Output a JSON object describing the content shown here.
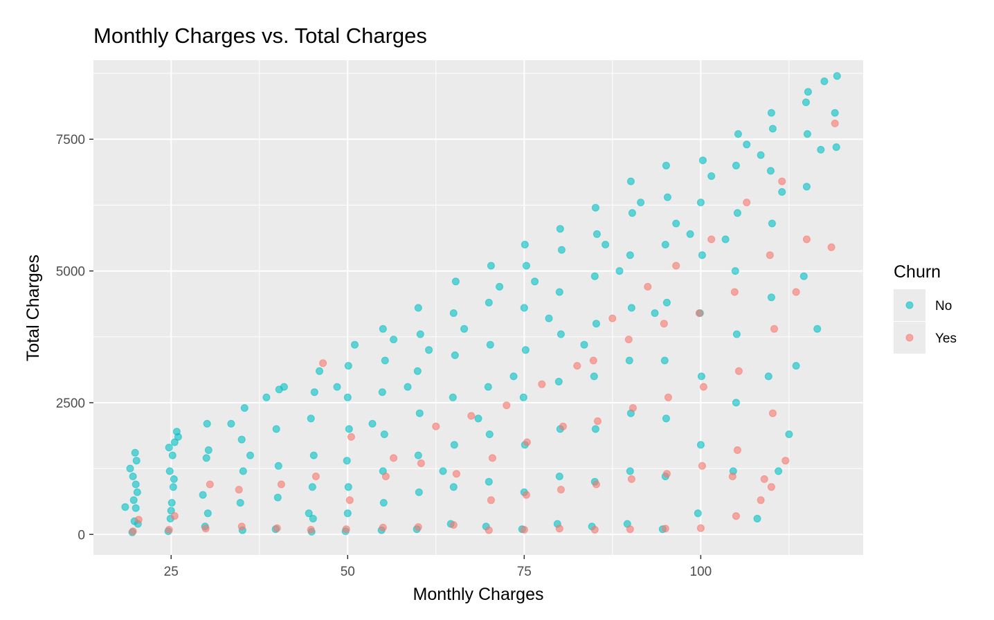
{
  "colors": {
    "panel_bg": "#EBEBEB",
    "grid": "#FFFFFF",
    "tick": "#333333",
    "tick_label": "#4D4D4D"
  },
  "chart_data": {
    "type": "scatter",
    "title": "Monthly Charges vs. Total Charges",
    "xlabel": "Monthly Charges",
    "ylabel": "Total Charges",
    "xlim": [
      14,
      123
    ],
    "ylim": [
      -390,
      9000
    ],
    "x_ticks": [
      25,
      50,
      75,
      100
    ],
    "x_tick_labels": [
      "25",
      "50",
      "75",
      "100"
    ],
    "y_ticks": [
      0,
      2500,
      5000,
      7500
    ],
    "y_tick_labels": [
      "0",
      "2500",
      "5000",
      "7500"
    ],
    "grid": true,
    "legend": {
      "title": "Churn",
      "position": "right"
    },
    "point_alpha": 0.6,
    "series": [
      {
        "name": "No",
        "color": "#00BFC4",
        "points": [
          [
            19.5,
            40
          ],
          [
            19.8,
            250
          ],
          [
            20.0,
            500
          ],
          [
            20.2,
            800
          ],
          [
            19.6,
            1100
          ],
          [
            20.1,
            1400
          ],
          [
            19.9,
            1550
          ],
          [
            20.3,
            200
          ],
          [
            19.7,
            650
          ],
          [
            20.0,
            950
          ],
          [
            18.5,
            520
          ],
          [
            19.2,
            1250
          ],
          [
            24.6,
            60
          ],
          [
            24.9,
            300
          ],
          [
            25.1,
            600
          ],
          [
            25.3,
            900
          ],
          [
            24.8,
            1200
          ],
          [
            25.2,
            1500
          ],
          [
            25.5,
            1750
          ],
          [
            25.8,
            1950
          ],
          [
            24.7,
            1650
          ],
          [
            25.0,
            450
          ],
          [
            25.4,
            1050
          ],
          [
            26.0,
            1850
          ],
          [
            29.8,
            150
          ],
          [
            30.2,
            400
          ],
          [
            30.0,
            1450
          ],
          [
            30.3,
            1600
          ],
          [
            30.1,
            2100
          ],
          [
            29.5,
            750
          ],
          [
            35.1,
            80
          ],
          [
            34.8,
            600
          ],
          [
            35.2,
            1200
          ],
          [
            35.0,
            1800
          ],
          [
            35.4,
            2400
          ],
          [
            33.5,
            2100
          ],
          [
            36.2,
            1500
          ],
          [
            39.8,
            100
          ],
          [
            40.1,
            700
          ],
          [
            40.2,
            1300
          ],
          [
            39.9,
            2000
          ],
          [
            40.3,
            2750
          ],
          [
            38.5,
            2600
          ],
          [
            41.0,
            2800
          ],
          [
            44.9,
            50
          ],
          [
            45.1,
            300
          ],
          [
            45.0,
            900
          ],
          [
            45.2,
            1500
          ],
          [
            44.8,
            2200
          ],
          [
            45.3,
            2700
          ],
          [
            46.0,
            3100
          ],
          [
            44.5,
            400
          ],
          [
            49.7,
            60
          ],
          [
            50.0,
            400
          ],
          [
            50.1,
            900
          ],
          [
            49.9,
            1400
          ],
          [
            50.2,
            2000
          ],
          [
            50.0,
            2600
          ],
          [
            50.1,
            3200
          ],
          [
            51.0,
            3600
          ],
          [
            48.5,
            2800
          ],
          [
            54.8,
            80
          ],
          [
            55.1,
            600
          ],
          [
            55.0,
            1200
          ],
          [
            55.2,
            1900
          ],
          [
            54.9,
            2700
          ],
          [
            55.3,
            3300
          ],
          [
            55.0,
            3900
          ],
          [
            56.5,
            3700
          ],
          [
            53.5,
            2100
          ],
          [
            59.8,
            100
          ],
          [
            60.1,
            800
          ],
          [
            60.0,
            1500
          ],
          [
            60.2,
            2300
          ],
          [
            59.9,
            3100
          ],
          [
            60.3,
            3800
          ],
          [
            60.0,
            4300
          ],
          [
            58.5,
            2800
          ],
          [
            61.5,
            3500
          ],
          [
            64.6,
            200
          ],
          [
            65.0,
            900
          ],
          [
            65.1,
            1700
          ],
          [
            64.9,
            2600
          ],
          [
            65.2,
            3400
          ],
          [
            65.0,
            4200
          ],
          [
            65.3,
            4800
          ],
          [
            63.5,
            1200
          ],
          [
            66.5,
            3900
          ],
          [
            69.6,
            150
          ],
          [
            70.0,
            1000
          ],
          [
            70.1,
            1900
          ],
          [
            69.9,
            2800
          ],
          [
            70.2,
            3600
          ],
          [
            70.0,
            4400
          ],
          [
            70.3,
            5100
          ],
          [
            68.5,
            2200
          ],
          [
            71.5,
            4700
          ],
          [
            74.7,
            100
          ],
          [
            75.0,
            800
          ],
          [
            75.1,
            1700
          ],
          [
            74.9,
            2600
          ],
          [
            75.2,
            3500
          ],
          [
            75.0,
            4300
          ],
          [
            75.3,
            5100
          ],
          [
            75.1,
            5500
          ],
          [
            76.5,
            4800
          ],
          [
            73.5,
            3000
          ],
          [
            79.7,
            200
          ],
          [
            80.0,
            1100
          ],
          [
            80.1,
            2000
          ],
          [
            79.9,
            2900
          ],
          [
            80.2,
            3800
          ],
          [
            80.0,
            4600
          ],
          [
            80.3,
            5400
          ],
          [
            80.1,
            5800
          ],
          [
            78.5,
            4100
          ],
          [
            84.6,
            150
          ],
          [
            85.0,
            1000
          ],
          [
            85.1,
            2000
          ],
          [
            84.9,
            3000
          ],
          [
            85.2,
            4000
          ],
          [
            85.0,
            4900
          ],
          [
            85.3,
            5700
          ],
          [
            85.1,
            6200
          ],
          [
            86.5,
            5500
          ],
          [
            83.5,
            3600
          ],
          [
            89.6,
            200
          ],
          [
            90.0,
            1200
          ],
          [
            90.1,
            2300
          ],
          [
            89.9,
            3300
          ],
          [
            90.2,
            4300
          ],
          [
            90.0,
            5300
          ],
          [
            90.3,
            6100
          ],
          [
            90.1,
            6700
          ],
          [
            88.5,
            5000
          ],
          [
            91.5,
            6300
          ],
          [
            94.6,
            100
          ],
          [
            95.0,
            1100
          ],
          [
            95.1,
            2200
          ],
          [
            94.9,
            3300
          ],
          [
            95.2,
            4400
          ],
          [
            95.0,
            5500
          ],
          [
            95.3,
            6400
          ],
          [
            95.1,
            7000
          ],
          [
            96.5,
            5900
          ],
          [
            93.5,
            4200
          ],
          [
            99.6,
            400
          ],
          [
            100.0,
            1700
          ],
          [
            100.1,
            3000
          ],
          [
            99.9,
            4200
          ],
          [
            100.2,
            5300
          ],
          [
            100.0,
            6300
          ],
          [
            100.3,
            7100
          ],
          [
            98.5,
            5700
          ],
          [
            101.5,
            6800
          ],
          [
            104.6,
            1200
          ],
          [
            105.0,
            2500
          ],
          [
            105.1,
            3800
          ],
          [
            104.9,
            5000
          ],
          [
            105.2,
            6100
          ],
          [
            105.0,
            7000
          ],
          [
            105.3,
            7600
          ],
          [
            106.5,
            7400
          ],
          [
            103.5,
            5600
          ],
          [
            109.6,
            3000
          ],
          [
            110.0,
            4500
          ],
          [
            110.1,
            5900
          ],
          [
            109.9,
            6900
          ],
          [
            110.2,
            7700
          ],
          [
            110.0,
            8000
          ],
          [
            108.5,
            7200
          ],
          [
            111.5,
            6500
          ],
          [
            114.6,
            4900
          ],
          [
            115.0,
            6600
          ],
          [
            115.1,
            7600
          ],
          [
            114.9,
            8200
          ],
          [
            115.2,
            8400
          ],
          [
            116.5,
            3900
          ],
          [
            117.0,
            7300
          ],
          [
            117.5,
            8600
          ],
          [
            119.3,
            8700
          ],
          [
            119.0,
            8000
          ],
          [
            119.2,
            7350
          ],
          [
            113.5,
            3200
          ],
          [
            112.5,
            1900
          ],
          [
            111.0,
            1200
          ],
          [
            108.0,
            300
          ]
        ]
      },
      {
        "name": "Yes",
        "color": "#F8766D",
        "points": [
          [
            19.6,
            60
          ],
          [
            20.4,
            280
          ],
          [
            24.7,
            90
          ],
          [
            25.5,
            350
          ],
          [
            29.9,
            110
          ],
          [
            30.5,
            950
          ],
          [
            35.0,
            150
          ],
          [
            34.6,
            850
          ],
          [
            40.0,
            120
          ],
          [
            40.6,
            950
          ],
          [
            44.8,
            90
          ],
          [
            45.5,
            1100
          ],
          [
            46.5,
            3250
          ],
          [
            49.8,
            100
          ],
          [
            50.3,
            650
          ],
          [
            50.5,
            1850
          ],
          [
            55.0,
            130
          ],
          [
            55.4,
            1100
          ],
          [
            56.5,
            1450
          ],
          [
            60.0,
            140
          ],
          [
            60.4,
            1350
          ],
          [
            62.5,
            2050
          ],
          [
            65.0,
            180
          ],
          [
            65.4,
            1150
          ],
          [
            67.5,
            2250
          ],
          [
            70.0,
            80
          ],
          [
            70.3,
            650
          ],
          [
            70.5,
            1450
          ],
          [
            72.5,
            2450
          ],
          [
            75.0,
            90
          ],
          [
            75.3,
            750
          ],
          [
            75.4,
            1750
          ],
          [
            77.5,
            2850
          ],
          [
            80.0,
            110
          ],
          [
            80.2,
            850
          ],
          [
            80.5,
            2050
          ],
          [
            82.5,
            3200
          ],
          [
            85.0,
            90
          ],
          [
            85.2,
            950
          ],
          [
            85.4,
            2150
          ],
          [
            84.8,
            3300
          ],
          [
            87.5,
            4100
          ],
          [
            90.0,
            100
          ],
          [
            90.2,
            1050
          ],
          [
            90.4,
            2400
          ],
          [
            89.8,
            3700
          ],
          [
            92.5,
            4700
          ],
          [
            95.0,
            110
          ],
          [
            95.2,
            1150
          ],
          [
            95.4,
            2600
          ],
          [
            94.8,
            4000
          ],
          [
            96.5,
            5100
          ],
          [
            100.0,
            120
          ],
          [
            100.2,
            1300
          ],
          [
            100.4,
            2800
          ],
          [
            99.8,
            4200
          ],
          [
            101.5,
            5600
          ],
          [
            105.0,
            350
          ],
          [
            105.2,
            1600
          ],
          [
            105.4,
            3100
          ],
          [
            104.8,
            4600
          ],
          [
            106.5,
            6300
          ],
          [
            110.0,
            900
          ],
          [
            110.2,
            2300
          ],
          [
            110.4,
            3900
          ],
          [
            109.8,
            5300
          ],
          [
            111.5,
            6700
          ],
          [
            113.5,
            4600
          ],
          [
            115.0,
            5600
          ],
          [
            118.5,
            5450
          ],
          [
            119.0,
            7800
          ],
          [
            112.0,
            1400
          ],
          [
            109.0,
            1050
          ],
          [
            108.5,
            650
          ],
          [
            104.5,
            1100
          ]
        ]
      }
    ]
  }
}
